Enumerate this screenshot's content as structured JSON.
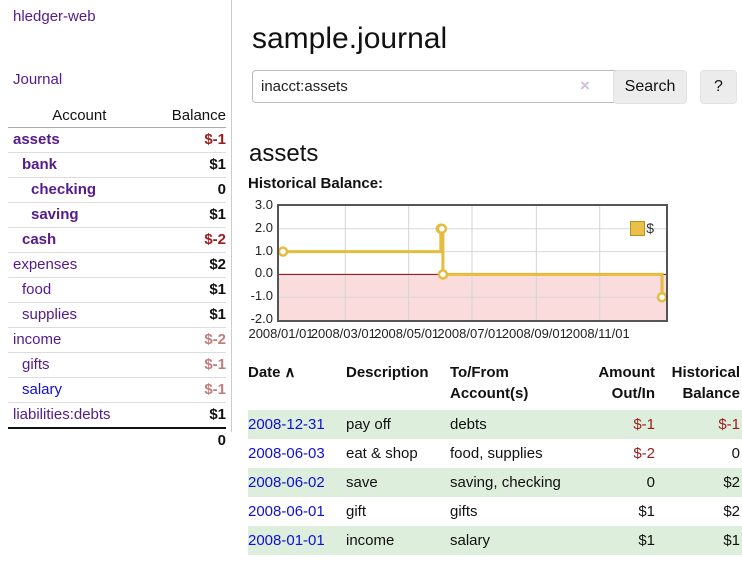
{
  "colors": {
    "purple": "#551a8b",
    "blue": "#0f0fd6",
    "black": "#111111",
    "neg_strong": "#9b1c1c",
    "neg_muted": "#c17d7d",
    "row_green": "#ddeedd",
    "chart_line": "#e6bc3e",
    "chart_pink": "#fadcdc",
    "zero_line": "#8b0000"
  },
  "app": {
    "brand": "hledger-web"
  },
  "nav": {
    "journal": "Journal"
  },
  "sidebar": {
    "headers": {
      "account": "Account",
      "balance": "Balance"
    },
    "accounts": [
      {
        "name": "assets",
        "depth": 1,
        "bold": true,
        "name_color": "purple",
        "balance": "$-1",
        "balance_color": "neg_strong"
      },
      {
        "name": "bank",
        "depth": 2,
        "bold": true,
        "name_color": "purple",
        "balance": "$1",
        "balance_color": "black"
      },
      {
        "name": "checking",
        "depth": 3,
        "bold": true,
        "name_color": "purple",
        "balance": "0",
        "balance_color": "black"
      },
      {
        "name": "saving",
        "depth": 3,
        "bold": true,
        "name_color": "purple",
        "balance": "$1",
        "balance_color": "black"
      },
      {
        "name": "cash",
        "depth": 2,
        "bold": true,
        "name_color": "purple",
        "balance": "$-2",
        "balance_color": "neg_strong"
      },
      {
        "name": "expenses",
        "depth": 1,
        "bold": false,
        "name_color": "purple",
        "balance": "$2",
        "balance_color": "black"
      },
      {
        "name": "food",
        "depth": 2,
        "bold": false,
        "name_color": "purple",
        "balance": "$1",
        "balance_color": "black"
      },
      {
        "name": "supplies",
        "depth": 2,
        "bold": false,
        "name_color": "purple",
        "balance": "$1",
        "balance_color": "black"
      },
      {
        "name": "income",
        "depth": 1,
        "bold": false,
        "name_color": "purple",
        "balance": "$-2",
        "balance_color": "neg_muted"
      },
      {
        "name": "gifts",
        "depth": 2,
        "bold": false,
        "name_color": "purple",
        "balance": "$-1",
        "balance_color": "neg_muted"
      },
      {
        "name": "salary",
        "depth": 2,
        "bold": false,
        "name_color": "blue",
        "balance": "$-1",
        "balance_color": "neg_muted"
      },
      {
        "name": "liabilities:debts",
        "depth": 1,
        "bold": false,
        "name_color": "purple",
        "balance": "$1",
        "balance_color": "black"
      }
    ],
    "total": "0"
  },
  "header": {
    "title": "sample.journal"
  },
  "search": {
    "value": "inacct:assets",
    "clear_icon": "×",
    "button_label": "Search",
    "help_label": "?"
  },
  "account_page": {
    "heading": "assets",
    "chart_title": "Historical Balance:"
  },
  "chart_data": {
    "type": "line",
    "step": true,
    "title": "Historical Balance of assets",
    "ylim": [
      -2.0,
      3.0
    ],
    "y_ticks": [
      3.0,
      2.0,
      1.0,
      0.0,
      -1.0,
      -2.0
    ],
    "x_range": [
      "2008-01-01",
      "2008-12-31"
    ],
    "x_ticks": [
      {
        "label": "2008/01/01",
        "date": "2008-01-01"
      },
      {
        "label": "2008/03/01",
        "date": "2008-03-01"
      },
      {
        "label": "2008/05/01",
        "date": "2008-05-01"
      },
      {
        "label": "2008/07/01",
        "date": "2008-07-01"
      },
      {
        "label": "2008/09/01",
        "date": "2008-09-01"
      },
      {
        "label": "2008/11/01",
        "date": "2008-11-01"
      }
    ],
    "grid": true,
    "legend_position": "top-right",
    "legend": {
      "label": "$"
    },
    "series": [
      {
        "name": "$",
        "points": [
          [
            "2008-01-01",
            1
          ],
          [
            "2008-06-01",
            2
          ],
          [
            "2008-06-02",
            2
          ],
          [
            "2008-06-03",
            0
          ],
          [
            "2008-12-31",
            -1
          ]
        ]
      }
    ]
  },
  "register": {
    "columns": [
      {
        "lines": [
          "Date"
        ],
        "sort": "asc",
        "sort_icon": "∧",
        "align": "left"
      },
      {
        "lines": [
          "Description"
        ],
        "align": "left"
      },
      {
        "lines": [
          "To/From",
          "Account(s)"
        ],
        "align": "left"
      },
      {
        "lines": [
          "Amount",
          "Out/In"
        ],
        "align": "right"
      },
      {
        "lines": [
          "Historical",
          "Balance"
        ],
        "align": "right"
      }
    ],
    "rows": [
      {
        "date": "2008-12-31",
        "description": "pay off",
        "accounts": "debts",
        "amount": "$-1",
        "amount_color": "neg_strong",
        "balance": "$-1",
        "balance_color": "neg_strong",
        "shaded": true
      },
      {
        "date": "2008-06-03",
        "description": "eat & shop",
        "accounts": "food, supplies",
        "amount": "$-2",
        "amount_color": "neg_strong",
        "balance": "0",
        "balance_color": "black",
        "shaded": false
      },
      {
        "date": "2008-06-02",
        "description": "save",
        "accounts": "saving, checking",
        "amount": "0",
        "amount_color": "black",
        "balance": "$2",
        "balance_color": "black",
        "shaded": true
      },
      {
        "date": "2008-06-01",
        "description": "gift",
        "accounts": "gifts",
        "amount": "$1",
        "amount_color": "black",
        "balance": "$2",
        "balance_color": "black",
        "shaded": false
      },
      {
        "date": "2008-01-01",
        "description": "income",
        "accounts": "salary",
        "amount": "$1",
        "amount_color": "black",
        "balance": "$1",
        "balance_color": "black",
        "shaded": true
      }
    ]
  }
}
